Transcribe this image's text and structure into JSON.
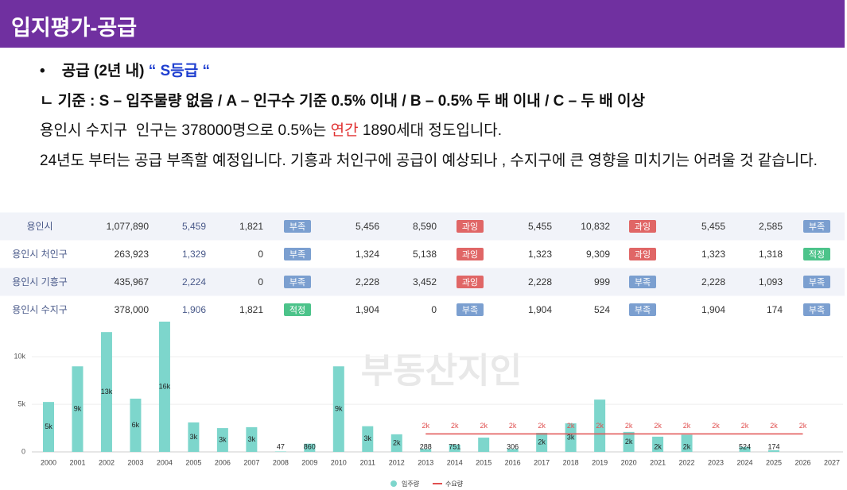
{
  "header": {
    "title": "입지평가-공급"
  },
  "bullet": {
    "label": "공급 (2년 내)",
    "grade": "“ S등급 “"
  },
  "criteria": "ㄴ 기준 : S – 입주물량 없음 / A – 인구수 기준 0.5% 이내 / B – 0.5% 두 배 이내 / C – 두 배 이상",
  "line3": {
    "before": "용인시 수지구  인구는 378000명으로 0.5%는 ",
    "highlight": "연간",
    "after": " 1890세대 정도입니다."
  },
  "paragraph": "24년도 부터는 공급 부족할 예정입니다. 기흥과 처인구에 공급이 예상되나 , 수지구에 큰 영향을 미치기는 어려울 것 같습니다.",
  "table": {
    "rows": [
      [
        "용인시",
        "1,077,890",
        "5,459",
        "1,821",
        {
          "text": "부족",
          "color": "#7b9fd0"
        },
        "5,456",
        "8,590",
        {
          "text": "과잉",
          "color": "#e06666"
        },
        "5,455",
        "10,832",
        {
          "text": "과잉",
          "color": "#e06666"
        },
        "5,455",
        "2,585",
        {
          "text": "부족",
          "color": "#7b9fd0"
        }
      ],
      [
        "용인시 처인구",
        "263,923",
        "1,329",
        "0",
        {
          "text": "부족",
          "color": "#7b9fd0"
        },
        "1,324",
        "5,138",
        {
          "text": "과잉",
          "color": "#e06666"
        },
        "1,323",
        "9,309",
        {
          "text": "과잉",
          "color": "#e06666"
        },
        "1,323",
        "1,318",
        {
          "text": "적정",
          "color": "#4cc38a"
        }
      ],
      [
        "용인시 기흥구",
        "435,967",
        "2,224",
        "0",
        {
          "text": "부족",
          "color": "#7b9fd0"
        },
        "2,228",
        "3,452",
        {
          "text": "과잉",
          "color": "#e06666"
        },
        "2,228",
        "999",
        {
          "text": "부족",
          "color": "#7b9fd0"
        },
        "2,228",
        "1,093",
        {
          "text": "부족",
          "color": "#7b9fd0"
        }
      ],
      [
        "용인시 수지구",
        "378,000",
        "1,906",
        "1,821",
        {
          "text": "적정",
          "color": "#4cc38a"
        },
        "1,904",
        "0",
        {
          "text": "부족",
          "color": "#7b9fd0"
        },
        "1,904",
        "524",
        {
          "text": "부족",
          "color": "#7b9fd0"
        },
        "1,904",
        "174",
        {
          "text": "부족",
          "color": "#7b9fd0"
        }
      ]
    ]
  },
  "watermark": "부동산지인",
  "chart_data": {
    "type": "bar",
    "categories": [
      "2000",
      "2001",
      "2002",
      "2003",
      "2004",
      "2005",
      "2006",
      "2007",
      "2008",
      "2009",
      "2010",
      "2011",
      "2012",
      "2013",
      "2014",
      "2015",
      "2016",
      "2017",
      "2018",
      "2019",
      "2020",
      "2021",
      "2022",
      "2023",
      "2024",
      "2025",
      "2026",
      "2027"
    ],
    "series": [
      {
        "name": "입주량",
        "color": "#7dd6cc",
        "type": "bar",
        "values": [
          5250,
          9000,
          12600,
          5600,
          16000,
          3100,
          2500,
          2600,
          47,
          860,
          9000,
          2700,
          1850,
          288,
          751,
          1500,
          306,
          2000,
          3000,
          5500,
          2100,
          1600,
          1800,
          null,
          524,
          174,
          null,
          null
        ],
        "value_labels": [
          "5k",
          "9k",
          "13k",
          "6k",
          "16k",
          "3k",
          "3k",
          "3k",
          "47",
          "860",
          "9k",
          "3k",
          "2k",
          "288",
          "751",
          null,
          "306",
          "2k",
          "3k",
          null,
          "2k",
          "2k",
          "2k",
          null,
          "524",
          "174",
          null,
          null
        ]
      },
      {
        "name": "수요량",
        "color": "#e05050",
        "type": "line",
        "values": [
          null,
          null,
          null,
          null,
          null,
          null,
          null,
          null,
          null,
          null,
          null,
          null,
          null,
          1890,
          1890,
          1890,
          1890,
          1890,
          1890,
          1890,
          1890,
          1890,
          1890,
          1890,
          1890,
          1890,
          1890,
          null
        ],
        "value_labels": [
          null,
          null,
          null,
          null,
          null,
          null,
          null,
          null,
          null,
          null,
          null,
          null,
          null,
          "2k",
          "2k",
          "2k",
          "2k",
          "2k",
          "2k",
          "2k",
          "2k",
          "2k",
          "2k",
          "2k",
          "2k",
          "2k",
          "2k",
          null
        ]
      }
    ],
    "ylim": [
      0,
      13700
    ],
    "yticks": [
      0,
      {
        "value": 5000,
        "label": "5k"
      },
      {
        "value": 10000,
        "label": "10k"
      }
    ],
    "grid": true
  }
}
